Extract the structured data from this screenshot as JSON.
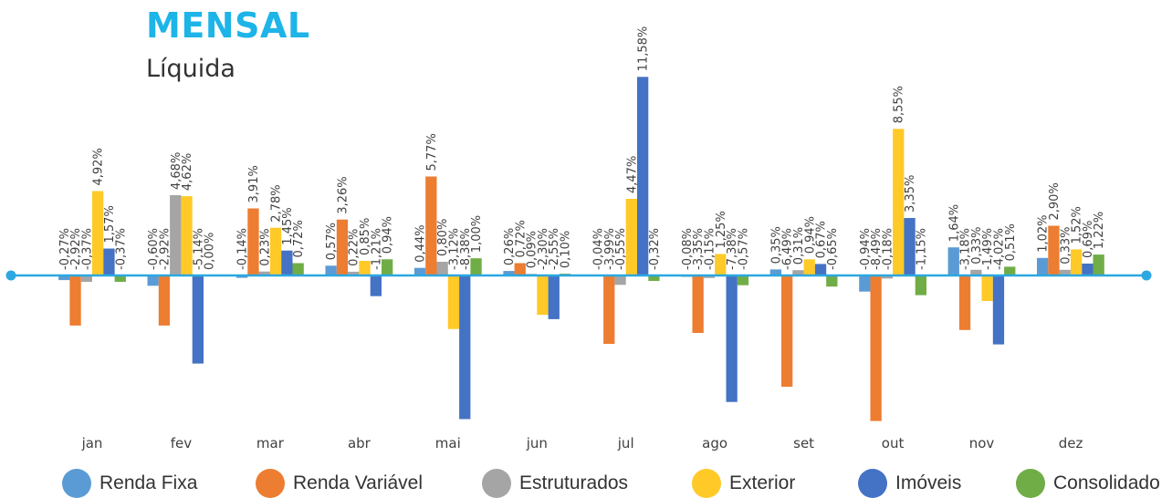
{
  "header": {
    "title": "MENSAL",
    "subtitle": "Líquida"
  },
  "chart_data": {
    "type": "bar",
    "categories": [
      "jan",
      "fev",
      "mar",
      "abr",
      "mai",
      "jun",
      "jul",
      "ago",
      "set",
      "out",
      "nov",
      "dez"
    ],
    "series": [
      {
        "name": "Renda Fixa",
        "color": "#5B9BD5",
        "values": [
          -0.27,
          -0.6,
          -0.14,
          0.57,
          0.44,
          0.26,
          -0.04,
          -0.08,
          0.35,
          -0.94,
          1.64,
          1.02
        ],
        "labels": [
          "-0,27%",
          "-0,60%",
          "-0,14%",
          "0,57%",
          "0,44%",
          "0,26%",
          "-0,04%",
          "-0,08%",
          "0,35%",
          "-0,94%",
          "1,64%",
          "1,02%"
        ]
      },
      {
        "name": "Renda Variável",
        "color": "#ED7D31",
        "values": [
          -2.92,
          -2.92,
          3.91,
          3.26,
          5.77,
          0.72,
          -3.99,
          -3.35,
          -6.49,
          -8.49,
          -3.18,
          2.9
        ],
        "labels": [
          "-2,92%",
          "-2,92%",
          "3,91%",
          "3,26%",
          "5,77%",
          "0,72%",
          "-3,99%",
          "-3,35%",
          "-6,49%",
          "-8,49%",
          "-3,18%",
          "2,90%"
        ]
      },
      {
        "name": "Estruturados",
        "color": "#A5A5A5",
        "values": [
          -0.37,
          4.68,
          0.23,
          0.22,
          0.8,
          0.09,
          -0.55,
          -0.15,
          0.31,
          -0.18,
          0.33,
          0.33
        ],
        "labels": [
          "-0,37%",
          "4,68%",
          "0,23%",
          "0,22%",
          "0,80%",
          "0,09%",
          "-0,55%",
          "-0,15%",
          "0,31%",
          "-0,18%",
          "0,33%",
          "0,33%"
        ]
      },
      {
        "name": "Exterior",
        "color": "#FFC928",
        "values": [
          4.92,
          4.62,
          2.78,
          0.85,
          -3.12,
          -2.3,
          4.47,
          1.25,
          0.94,
          8.55,
          -1.49,
          1.52
        ],
        "labels": [
          "4,92%",
          "4,62%",
          "2,78%",
          "0,85%",
          "-3,12%",
          "-2,30%",
          "4,47%",
          "1,25%",
          "0,94%",
          "8,55%",
          "-1,49%",
          "1,52%"
        ]
      },
      {
        "name": "Imóveis",
        "color": "#4472C4",
        "values": [
          1.57,
          -5.14,
          1.45,
          -1.21,
          -8.38,
          -2.55,
          11.58,
          -7.38,
          0.67,
          3.35,
          -4.02,
          0.69
        ],
        "labels": [
          "1,57%",
          "-5,14%",
          "1,45%",
          "-1,21%",
          "-8,38%",
          "-2,55%",
          "11,58%",
          "-7,38%",
          "0,67%",
          "3,35%",
          "-4,02%",
          "0,69%"
        ]
      },
      {
        "name": "Consolidado",
        "color": "#70AD47",
        "values": [
          -0.37,
          0.0,
          0.72,
          0.94,
          1.0,
          0.1,
          -0.32,
          -0.57,
          -0.65,
          -1.15,
          0.51,
          1.22
        ],
        "labels": [
          "-0,37%",
          "0,00%",
          "0,72%",
          "0,94%",
          "1,00%",
          "0,10%",
          "-0,32%",
          "-0,57%",
          "-0,65%",
          "-1,15%",
          "0,51%",
          "1,22%"
        ]
      }
    ],
    "axis_color": "#2BA8E0",
    "legend_position": "bottom",
    "grid": false
  }
}
